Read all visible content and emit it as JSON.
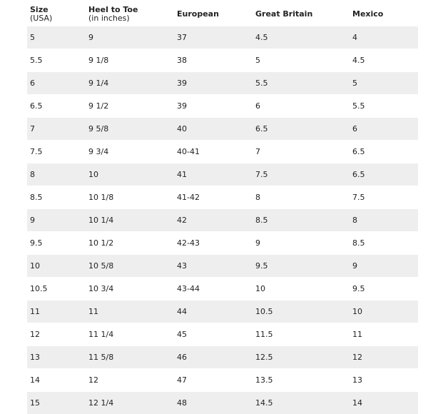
{
  "headers": {
    "size": "Size",
    "size_sub": "(USA)",
    "heel": "Heel to Toe",
    "heel_sub": "(in inches)",
    "european": "European",
    "great_britain": "Great Britain",
    "mexico": "Mexico"
  },
  "rows": [
    {
      "usa": "5",
      "heel": "9",
      "european": "37",
      "gb": "4.5",
      "mexico": "4"
    },
    {
      "usa": "5.5",
      "heel": "9 1/8",
      "european": "38",
      "gb": "5",
      "mexico": "4.5"
    },
    {
      "usa": "6",
      "heel": "9 1/4",
      "european": "39",
      "gb": "5.5",
      "mexico": "5"
    },
    {
      "usa": "6.5",
      "heel": "9 1/2",
      "european": "39",
      "gb": "6",
      "mexico": "5.5"
    },
    {
      "usa": "7",
      "heel": "9 5/8",
      "european": "40",
      "gb": "6.5",
      "mexico": "6"
    },
    {
      "usa": "7.5",
      "heel": "9 3/4",
      "european": "40-41",
      "gb": "7",
      "mexico": "6.5"
    },
    {
      "usa": "8",
      "heel": "10",
      "european": "41",
      "gb": "7.5",
      "mexico": "6.5"
    },
    {
      "usa": "8.5",
      "heel": "10 1/8",
      "european": "41-42",
      "gb": "8",
      "mexico": "7.5"
    },
    {
      "usa": "9",
      "heel": "10 1/4",
      "european": "42",
      "gb": "8.5",
      "mexico": "8"
    },
    {
      "usa": "9.5",
      "heel": "10 1/2",
      "european": "42-43",
      "gb": "9",
      "mexico": "8.5"
    },
    {
      "usa": "10",
      "heel": "10 5/8",
      "european": "43",
      "gb": "9.5",
      "mexico": "9"
    },
    {
      "usa": "10.5",
      "heel": "10 3/4",
      "european": "43-44",
      "gb": "10",
      "mexico": "9.5"
    },
    {
      "usa": "11",
      "heel": "11",
      "european": "44",
      "gb": "10.5",
      "mexico": "10"
    },
    {
      "usa": "12",
      "heel": "11 1/4",
      "european": "45",
      "gb": "11.5",
      "mexico": "11"
    },
    {
      "usa": "13",
      "heel": "11 5/8",
      "european": "46",
      "gb": "12.5",
      "mexico": "12"
    },
    {
      "usa": "14",
      "heel": "12",
      "european": "47",
      "gb": "13.5",
      "mexico": "13"
    },
    {
      "usa": "15",
      "heel": "12 1/4",
      "european": "48",
      "gb": "14.5",
      "mexico": "14"
    }
  ]
}
